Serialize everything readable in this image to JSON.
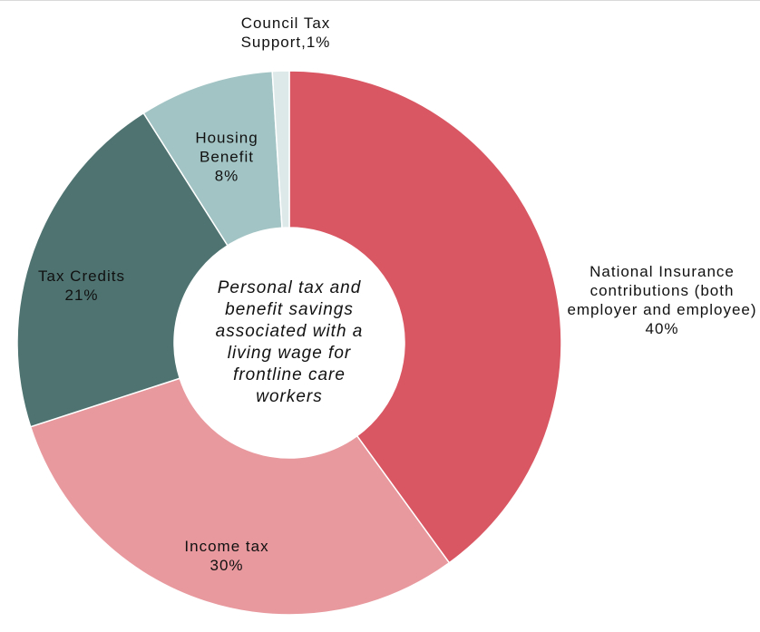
{
  "chart_data": {
    "type": "donut",
    "title": "Personal tax and benefit savings associated with a living wage for frontline care workers",
    "categories": [
      "National Insurance contributions (both employer and employee)",
      "Income tax",
      "Tax Credits",
      "Housing Benefit",
      "Council Tax Support,"
    ],
    "values": [
      40,
      30,
      21,
      8,
      1
    ],
    "value_labels": [
      "40%",
      "30%",
      "21%",
      "8%",
      "1%"
    ],
    "colors": [
      "#d95763",
      "#e8999e",
      "#4e7370",
      "#a3c4c4",
      "#dde8e8"
    ]
  }
}
